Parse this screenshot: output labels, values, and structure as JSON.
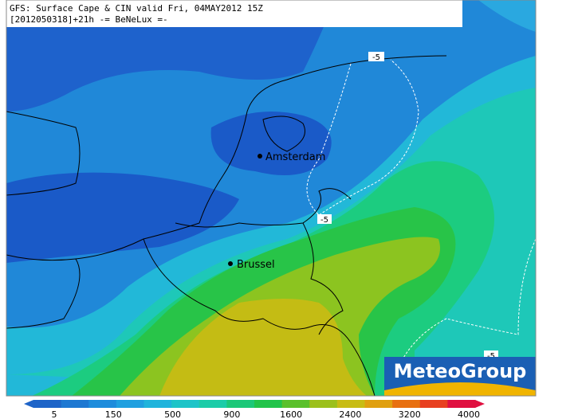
{
  "header": {
    "line1": "GFS: Surface Cape & CIN valid Fri, 04MAY2012 15Z",
    "line2": "[2012050318]+21h -= BeNeLux =-"
  },
  "cities": [
    {
      "name": "Amsterdam"
    },
    {
      "name": "Brussel"
    }
  ],
  "contour_labels": [
    "-5",
    "-5",
    "-5"
  ],
  "colorbar": {
    "labels": [
      5,
      150,
      500,
      900,
      1600,
      2400,
      3200,
      4000
    ],
    "colors": [
      "#1e64c8",
      "#1e78d2",
      "#1e8cdc",
      "#20a0e0",
      "#20b4dc",
      "#1ec4c8",
      "#1ccca8",
      "#1cc878",
      "#22c44a",
      "#5ac02c",
      "#9cc01c",
      "#c8bc14",
      "#e0a010",
      "#e87010",
      "#e84020",
      "#e01040"
    ]
  },
  "logo": "MeteoGroup"
}
